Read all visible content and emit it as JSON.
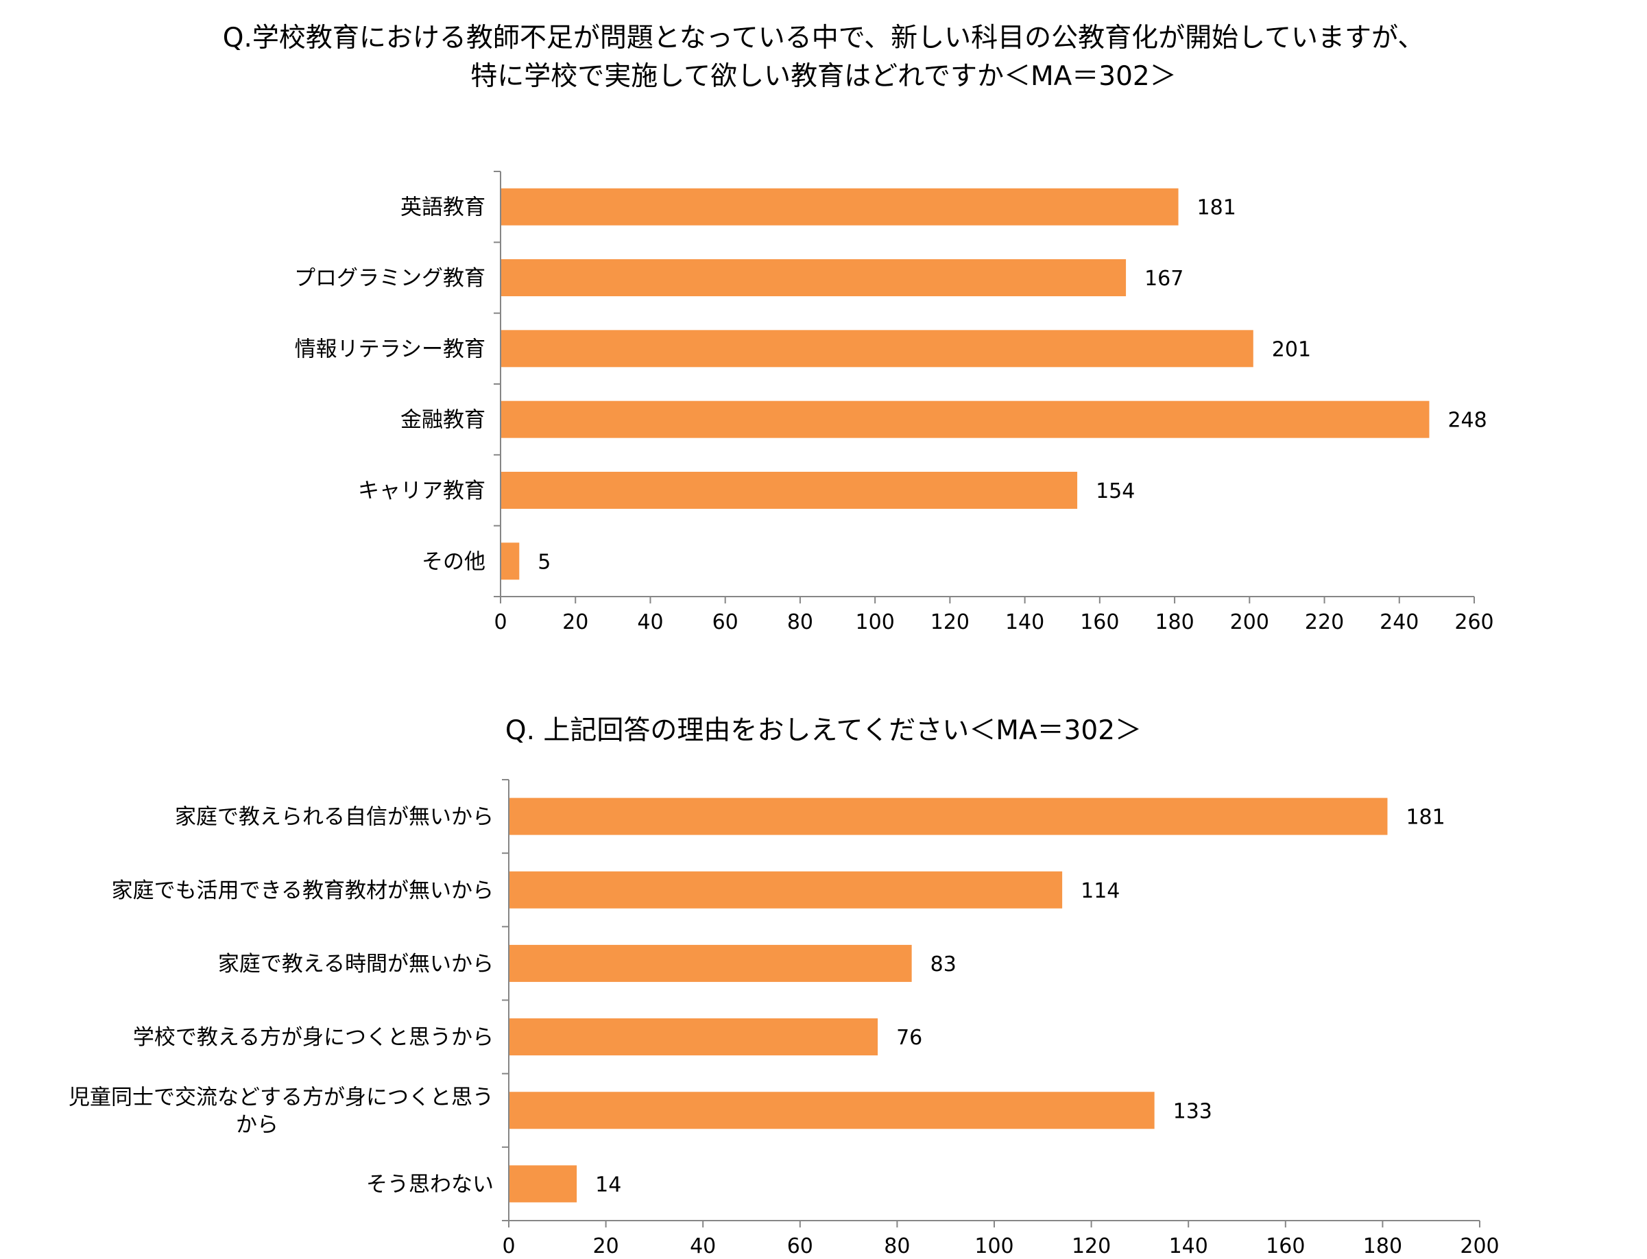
{
  "chart_data": [
    {
      "type": "bar",
      "orientation": "horizontal",
      "title_lines": [
        "Q.学校教育における教師不足が問題となっている中で、新しい科目の公教育化が開始していますが、",
        "特に学校で実施して欲しい教育はどれですか＜MA＝302＞"
      ],
      "categories": [
        "英語教育",
        "プログラミング教育",
        "情報リテラシー教育",
        "金融教育",
        "キャリア教育",
        "その他"
      ],
      "values": [
        181,
        167,
        201,
        248,
        154,
        5
      ],
      "xlim": [
        0,
        260
      ],
      "xticks": [
        "0",
        "20",
        "40",
        "60",
        "80",
        "100",
        "120",
        "140",
        "160",
        "180",
        "200",
        "220",
        "240",
        "260"
      ],
      "bar_color": "#F79646",
      "grid": false,
      "legend": "none"
    },
    {
      "type": "bar",
      "orientation": "horizontal",
      "title_lines": [
        "Q. 上記回答の理由をおしえてください＜MA＝302＞"
      ],
      "categories": [
        [
          "家庭で教えられる自信が無いから"
        ],
        [
          "家庭でも活用できる教育教材が無いから"
        ],
        [
          "家庭で教える時間が無いから"
        ],
        [
          "学校で教える方が身につくと思うから"
        ],
        [
          "児童同士で交流などする方が身につくと思う",
          "から"
        ],
        [
          "そう思わない"
        ]
      ],
      "values": [
        181,
        114,
        83,
        76,
        133,
        14
      ],
      "xlim": [
        0,
        200
      ],
      "xticks": [
        "0",
        "20",
        "40",
        "60",
        "80",
        "100",
        "120",
        "140",
        "160",
        "180",
        "200"
      ],
      "bar_color": "#F79646",
      "grid": false,
      "legend": "none"
    }
  ]
}
